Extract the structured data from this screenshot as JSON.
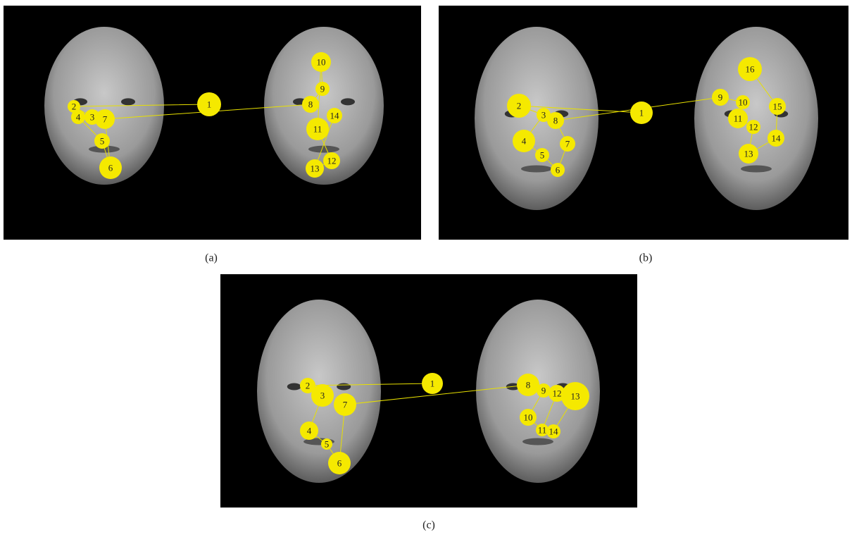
{
  "panels": [
    {
      "label": "(a)",
      "fixations": [
        1,
        2,
        3,
        4,
        5,
        6,
        7,
        8,
        9,
        10,
        11,
        12,
        13,
        14
      ]
    },
    {
      "label": "(b)",
      "fixations": [
        1,
        2,
        3,
        4,
        5,
        6,
        7,
        8,
        9,
        10,
        11,
        12,
        13,
        14,
        15,
        16
      ]
    },
    {
      "label": "(c)",
      "fixations": [
        1,
        2,
        3,
        4,
        5,
        6,
        7,
        8,
        9,
        10,
        11,
        12,
        13,
        14
      ]
    }
  ]
}
